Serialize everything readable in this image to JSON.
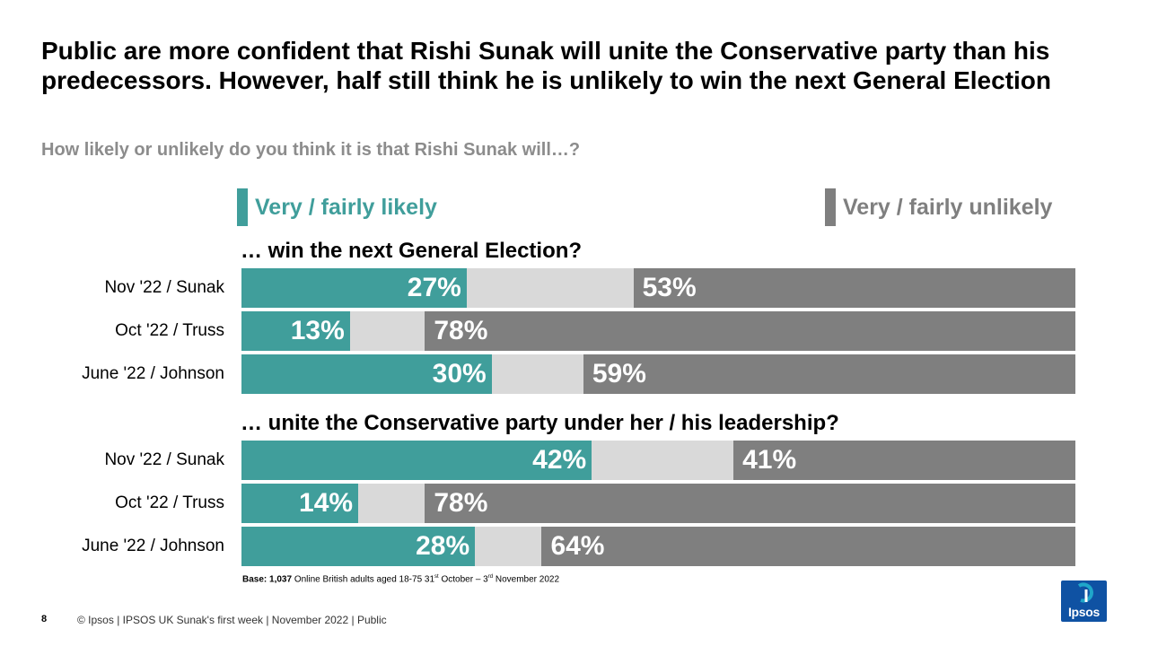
{
  "title": "Public are more confident that Rishi Sunak will unite the Conservative party than his predecessors. However, half still think he is unlikely to win the next General Election",
  "subtitle": "How likely or unlikely do you think it is that Rishi Sunak will…?",
  "legend": {
    "likely": "Very / fairly likely",
    "unlikely": "Very / fairly unlikely"
  },
  "colors": {
    "likely": "#409e9b",
    "neither": "#d9d9d9",
    "unlikely": "#7f7f7f"
  },
  "chart_data": {
    "type": "bar",
    "stacked": true,
    "orientation": "horizontal",
    "xlim": [
      0,
      100
    ],
    "series_names": [
      "Very / fairly likely",
      "Very / fairly unlikely"
    ],
    "sections": [
      {
        "title": "… win the next General Election?",
        "rows": [
          {
            "label": "Nov '22 / Sunak",
            "likely": 27,
            "unlikely": 53,
            "likely_label": "27%",
            "unlikely_label": "53%"
          },
          {
            "label": "Oct '22 / Truss",
            "likely": 13,
            "unlikely": 78,
            "likely_label": "13%",
            "unlikely_label": "78%"
          },
          {
            "label": "June '22 / Johnson",
            "likely": 30,
            "unlikely": 59,
            "likely_label": "30%",
            "unlikely_label": "59%"
          }
        ]
      },
      {
        "title": "… unite the Conservative party under her / his leadership?",
        "rows": [
          {
            "label": "Nov '22 / Sunak",
            "likely": 42,
            "unlikely": 41,
            "likely_label": "42%",
            "unlikely_label": "41%"
          },
          {
            "label": "Oct '22 / Truss",
            "likely": 14,
            "unlikely": 78,
            "likely_label": "14%",
            "unlikely_label": "78%"
          },
          {
            "label": "June '22 / Johnson",
            "likely": 28,
            "unlikely": 64,
            "likely_label": "28%",
            "unlikely_label": "64%"
          }
        ]
      }
    ]
  },
  "base": {
    "bold": "Base: 1,037",
    "text": " Online British adults aged 18-75 31",
    "sup1": "st",
    "mid": " October – 3",
    "sup2": "rd",
    "end": " November 2022"
  },
  "footer": {
    "page_number": "8",
    "text": "© Ipsos | IPSOS UK Sunak's first week | November 2022 | Public"
  },
  "logo": {
    "text": "Ipsos"
  }
}
